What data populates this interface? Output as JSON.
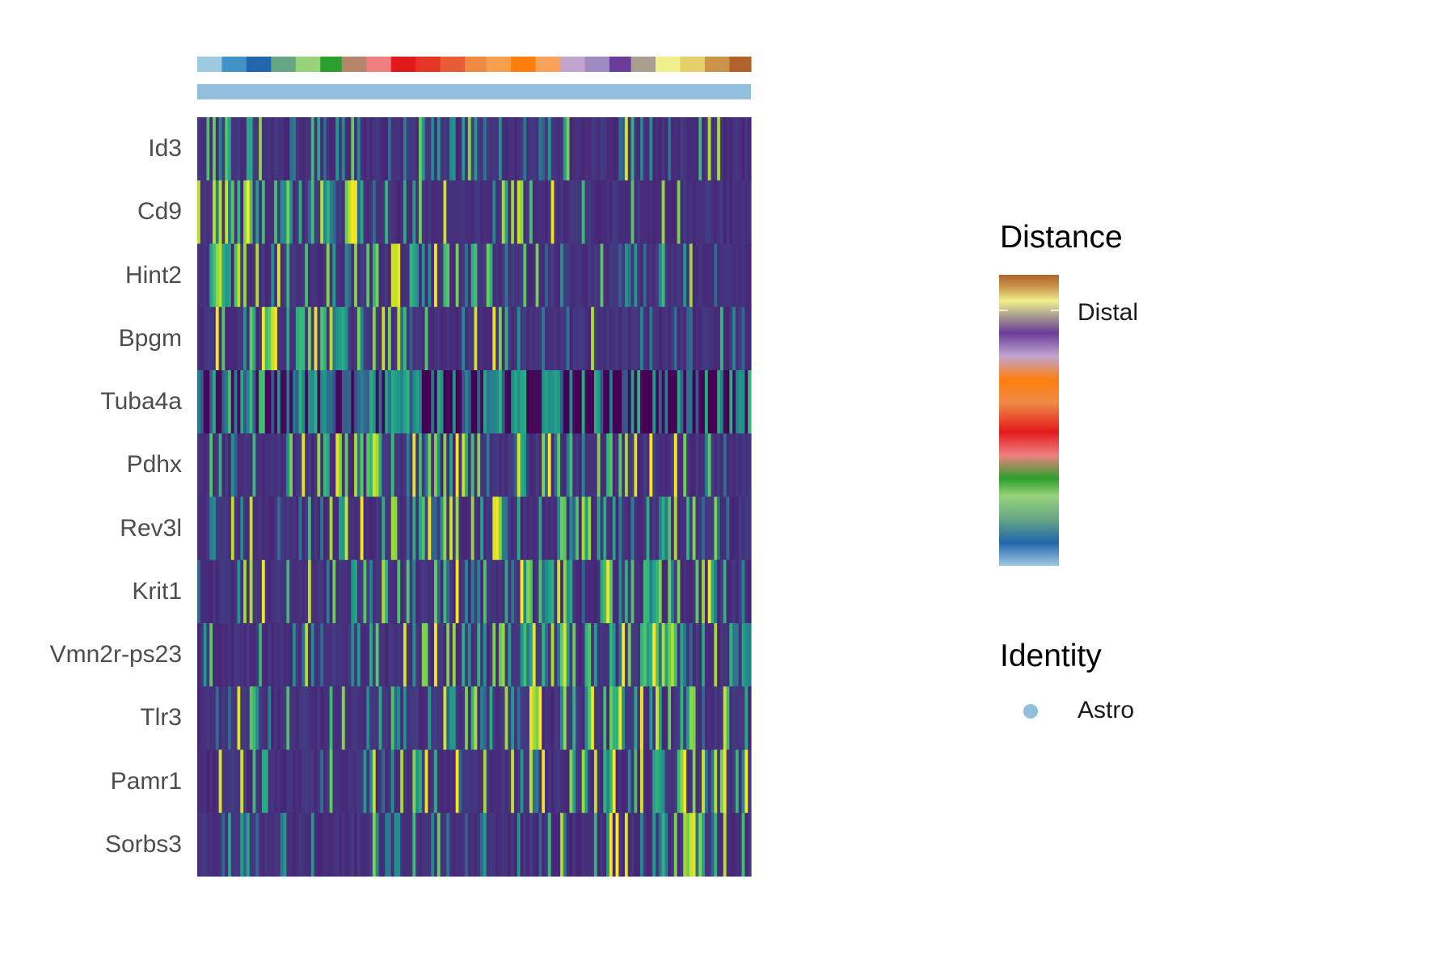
{
  "chart_data": {
    "type": "heatmap",
    "rows": [
      "Id3",
      "Cd9",
      "Hint2",
      "Bpgm",
      "Tuba4a",
      "Pdhx",
      "Rev3l",
      "Krit1",
      "Vmn2r-ps23",
      "Tlr3",
      "Pamr1",
      "Sorbs3"
    ],
    "n_columns": 180,
    "colorscale": "viridis",
    "annotations": [
      {
        "name": "Distance",
        "palette": [
          "#9ecae1",
          "#4292c6",
          "#2166ac",
          "#66a683",
          "#98d27a",
          "#2ca02c",
          "#b7856a",
          "#f08080",
          "#e31a1c",
          "#e43526",
          "#e85c38",
          "#ef8a45",
          "#f5a04f",
          "#ff7f0e",
          "#f9a25a",
          "#c2a5cf",
          "#9e8bc2",
          "#6a3d9a",
          "#a99f8f",
          "#f1f08c",
          "#e4cf6a",
          "#c9934a",
          "#b0622a"
        ],
        "legend_label": "Distal"
      },
      {
        "name": "Identity",
        "levels": [
          "Astro"
        ],
        "colors": [
          "#92c0dc"
        ]
      }
    ]
  },
  "legend": {
    "distance_title": "Distance",
    "distance_label": "Distal",
    "identity_title": "Identity",
    "identity_items": [
      {
        "label": "Astro",
        "color": "#92c0dc"
      }
    ]
  }
}
